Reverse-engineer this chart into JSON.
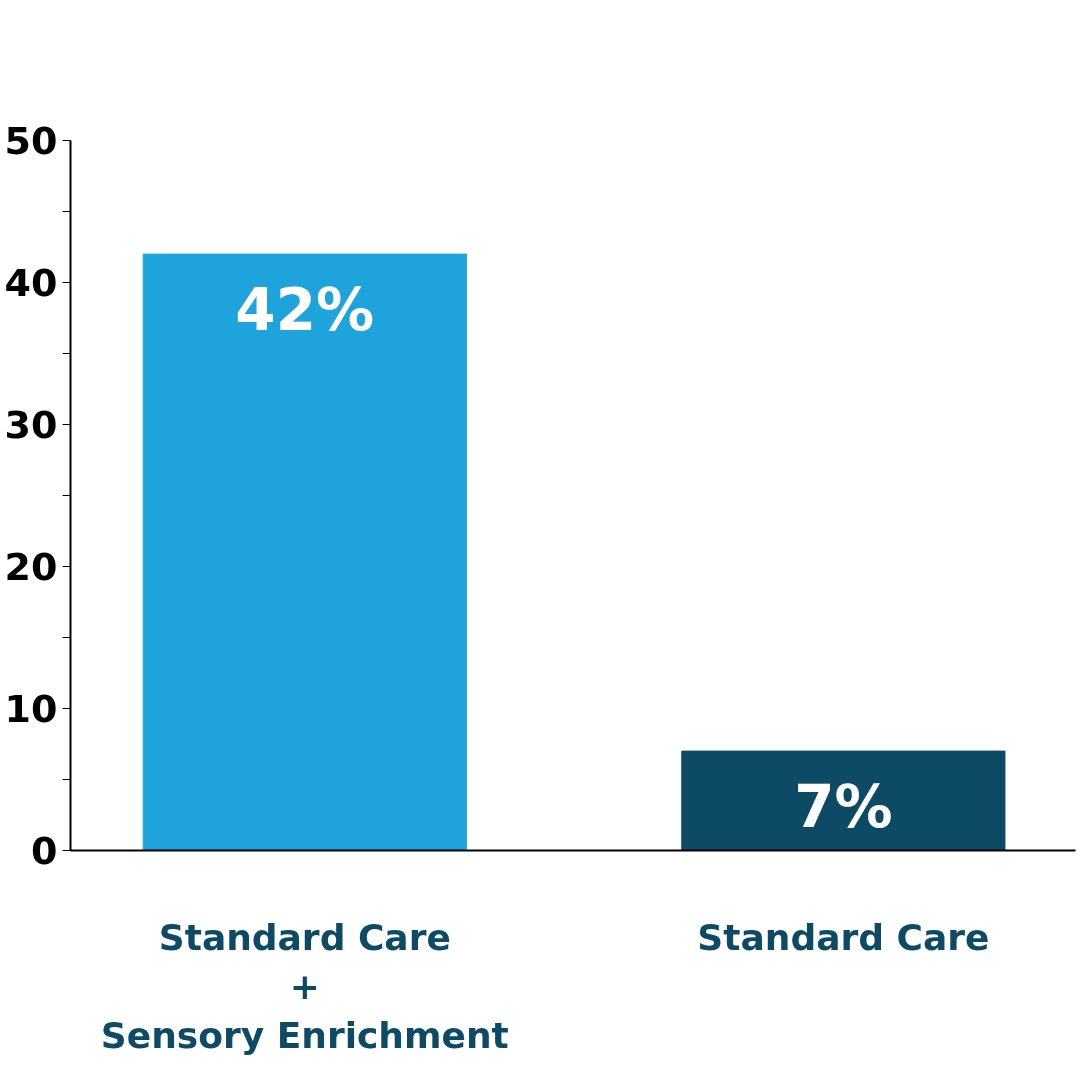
{
  "chart_data": {
    "type": "bar",
    "categories": [
      "Standard Care\n+\nSensory Enrichment",
      "Standard Care"
    ],
    "values": [
      42,
      7
    ],
    "colors": [
      "#1fa3dd",
      "#0c4a66"
    ],
    "value_labels": [
      "42%",
      "7%"
    ],
    "ylim": [
      0,
      50
    ],
    "yticks": [
      0,
      {
        "value": 5,
        "label": null
      },
      10,
      {
        "value": 15,
        "label": null
      },
      20,
      {
        "value": 25,
        "label": null
      },
      30,
      {
        "value": 35,
        "label": null
      },
      40,
      {
        "value": 45,
        "label": null
      },
      50
    ],
    "grid": false
  }
}
